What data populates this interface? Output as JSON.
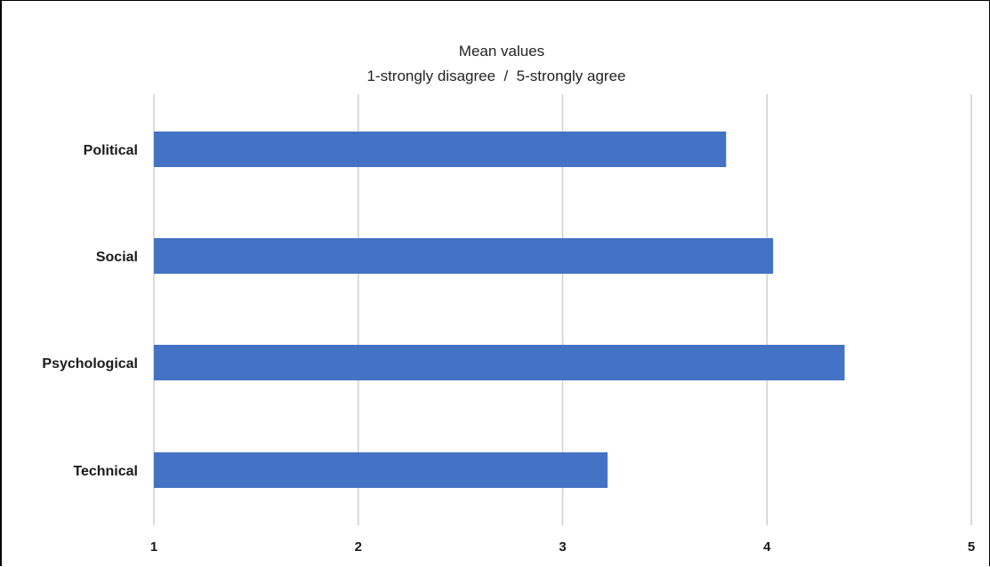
{
  "chart_data": {
    "type": "bar",
    "orientation": "horizontal",
    "title": "Mean values",
    "subtitle": "1-strongly disagree  /  5-strongly agree",
    "categories": [
      "Political",
      "Social",
      "Psychological",
      "Technical"
    ],
    "series": [
      {
        "values": [
          3.8,
          4.03,
          4.38,
          3.22
        ]
      }
    ],
    "xlim": [
      1,
      5
    ],
    "xticks": [
      "1",
      "2",
      "3",
      "4",
      "5"
    ],
    "grid": true,
    "legend": "none",
    "colors": {
      "bar": "#4472c4",
      "grid": "#cfcfcf"
    }
  }
}
